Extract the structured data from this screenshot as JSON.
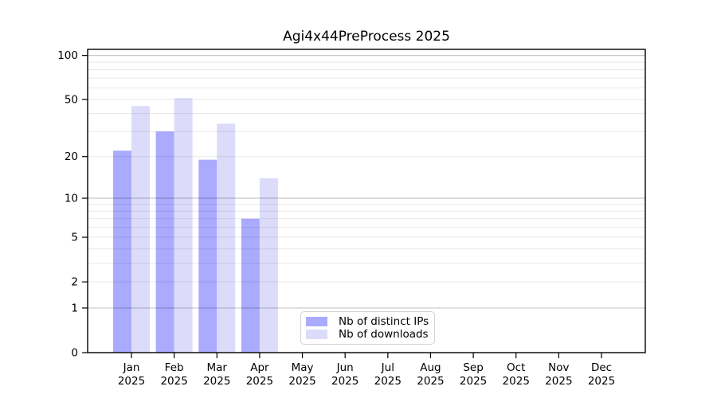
{
  "chart_data": {
    "type": "bar",
    "title": "Agi4x44PreProcess 2025",
    "y_scale": "log1p",
    "ylim": [
      0,
      110
    ],
    "y_ticks": [
      0,
      1,
      2,
      5,
      10,
      20,
      50,
      100
    ],
    "grid_major_values": [
      1,
      10,
      100
    ],
    "grid_minor_values": [
      2,
      3,
      4,
      5,
      6,
      7,
      8,
      9,
      20,
      30,
      40,
      50,
      60,
      70,
      80,
      90
    ],
    "grid": "on",
    "legend_position": "bottom-center",
    "categories": [
      {
        "month": "Jan",
        "year": "2025"
      },
      {
        "month": "Feb",
        "year": "2025"
      },
      {
        "month": "Mar",
        "year": "2025"
      },
      {
        "month": "Apr",
        "year": "2025"
      },
      {
        "month": "May",
        "year": "2025"
      },
      {
        "month": "Jun",
        "year": "2025"
      },
      {
        "month": "Jul",
        "year": "2025"
      },
      {
        "month": "Aug",
        "year": "2025"
      },
      {
        "month": "Sep",
        "year": "2025"
      },
      {
        "month": "Oct",
        "year": "2025"
      },
      {
        "month": "Nov",
        "year": "2025"
      },
      {
        "month": "Dec",
        "year": "2025"
      }
    ],
    "series": [
      {
        "name": "Nb of distinct IPs",
        "color": "#aaaaff",
        "values": [
          22,
          30,
          19,
          7,
          0,
          0,
          0,
          0,
          0,
          0,
          0,
          0
        ]
      },
      {
        "name": "Nb of downloads",
        "color": "#dcdcfa",
        "values": [
          45,
          51,
          34,
          14,
          0,
          0,
          0,
          0,
          0,
          0,
          0,
          0
        ]
      }
    ],
    "xlabel": "",
    "ylabel": ""
  },
  "colors": {
    "spine": "#000000",
    "grid_major": "rgba(0,0,0,0.22)",
    "grid_minor": "rgba(0,0,0,0.09)",
    "tick_label": "#000000",
    "background": "#ffffff"
  }
}
